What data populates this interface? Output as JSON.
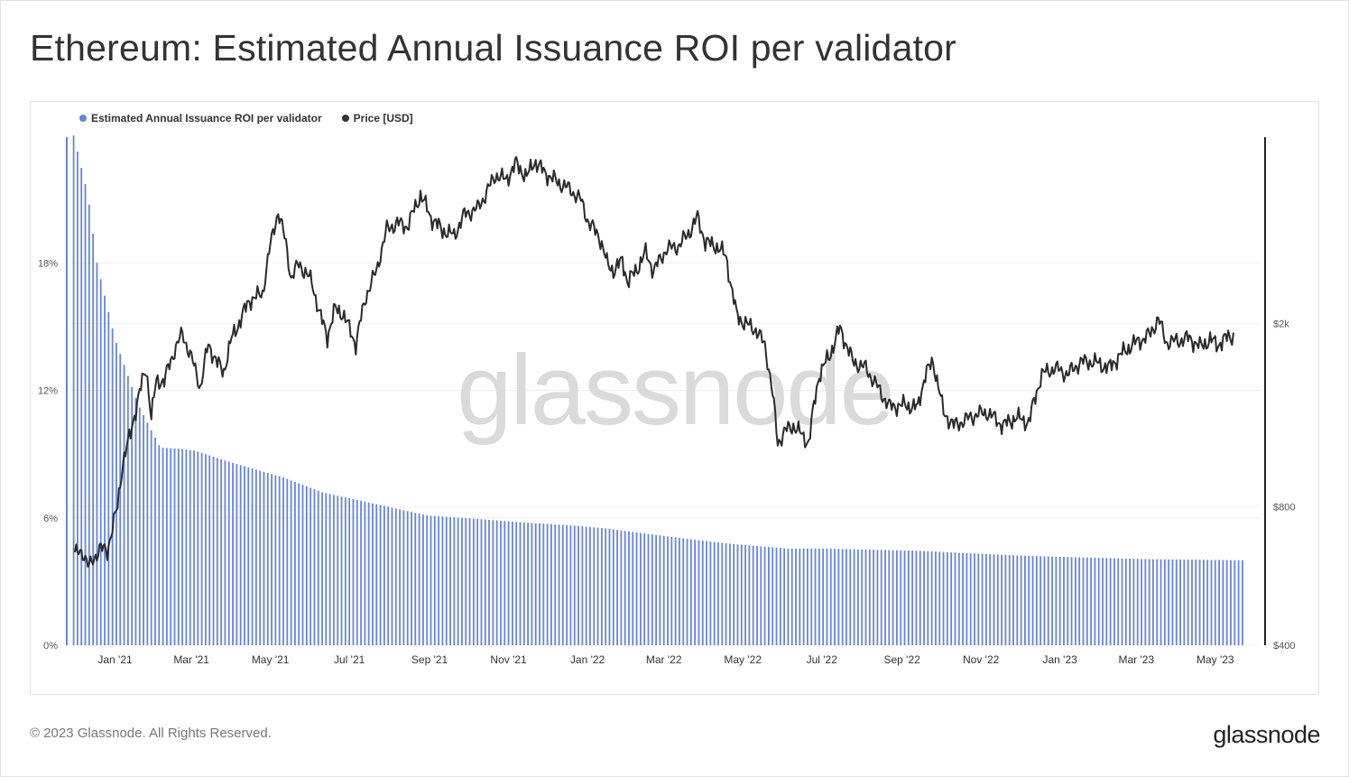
{
  "title": "Ethereum: Estimated Annual Issuance ROI per validator",
  "legend": [
    {
      "label": "Estimated Annual Issuance ROI per validator",
      "color": "#6784dd"
    },
    {
      "label": "Price [USD]",
      "color": "#333333"
    }
  ],
  "watermark": "glassnode",
  "footer": "© 2023 Glassnode. All Rights Reserved.",
  "brand": "glassnode",
  "chart_data": {
    "type": "bar+line",
    "title": "Ethereum: Estimated Annual Issuance ROI per validator",
    "x_tick_labels": [
      "Jan '21",
      "Mar '21",
      "May '21",
      "Jul '21",
      "Sep '21",
      "Nov '21",
      "Jan '22",
      "Mar '22",
      "May '22",
      "Jul '22",
      "Sep '22",
      "Nov '22",
      "Jan '23",
      "Mar '23",
      "May '23"
    ],
    "x_tick_days": [
      20,
      79,
      140,
      201,
      263,
      324,
      385,
      444,
      505,
      566,
      628,
      689,
      750,
      809,
      870
    ],
    "x_range_days": [
      -18,
      905
    ],
    "left_axis": {
      "label_ticks": [
        "0%",
        "6%",
        "12%",
        "18%"
      ],
      "values": [
        0,
        6,
        12,
        18
      ],
      "range": [
        0,
        24
      ]
    },
    "right_axis": {
      "scale": "log",
      "label_ticks": [
        "$400",
        "$800",
        "$2k"
      ],
      "values": [
        400,
        800,
        2000
      ],
      "range": [
        400,
        5120
      ]
    },
    "series": [
      {
        "name": "Estimated Annual Issuance ROI per validator",
        "type": "bar",
        "axis": "left",
        "color": "#6784dd",
        "points": [
          [
            -12,
            24
          ],
          [
            -1,
            21.2
          ],
          [
            6,
            18
          ],
          [
            20,
            14.4
          ],
          [
            38,
            11.3
          ],
          [
            55,
            9.3
          ],
          [
            70,
            9.25
          ],
          [
            82,
            9.15
          ],
          [
            110,
            8.6
          ],
          [
            150,
            7.9
          ],
          [
            180,
            7.2
          ],
          [
            225,
            6.6
          ],
          [
            262,
            6.1
          ],
          [
            300,
            5.95
          ],
          [
            330,
            5.8
          ],
          [
            370,
            5.65
          ],
          [
            400,
            5.5
          ],
          [
            430,
            5.25
          ],
          [
            470,
            4.95
          ],
          [
            500,
            4.75
          ],
          [
            540,
            4.55
          ],
          [
            570,
            4.55
          ],
          [
            600,
            4.5
          ],
          [
            640,
            4.45
          ],
          [
            680,
            4.33
          ],
          [
            720,
            4.22
          ],
          [
            740,
            4.18
          ],
          [
            790,
            4.1
          ],
          [
            820,
            4.05
          ],
          [
            893,
            4.0
          ]
        ]
      },
      {
        "name": "Price [USD]",
        "type": "line",
        "axis": "right",
        "color": "#2b2b2b",
        "points": [
          [
            -11,
            630
          ],
          [
            -5,
            640
          ],
          [
            0,
            590
          ],
          [
            8,
            650
          ],
          [
            14,
            640
          ],
          [
            18,
            720
          ],
          [
            22,
            800
          ],
          [
            26,
            1000
          ],
          [
            32,
            1150
          ],
          [
            38,
            1380
          ],
          [
            44,
            1600
          ],
          [
            48,
            1250
          ],
          [
            52,
            1500
          ],
          [
            58,
            1500
          ],
          [
            66,
            1750
          ],
          [
            72,
            1900
          ],
          [
            80,
            1650
          ],
          [
            86,
            1450
          ],
          [
            92,
            1800
          ],
          [
            99,
            1640
          ],
          [
            104,
            1570
          ],
          [
            110,
            1850
          ],
          [
            116,
            2010
          ],
          [
            124,
            2250
          ],
          [
            134,
            2320
          ],
          [
            140,
            2950
          ],
          [
            146,
            3500
          ],
          [
            152,
            2980
          ],
          [
            156,
            2500
          ],
          [
            162,
            2700
          ],
          [
            172,
            2460
          ],
          [
            178,
            2100
          ],
          [
            184,
            1870
          ],
          [
            190,
            2150
          ],
          [
            196,
            2100
          ],
          [
            206,
            1800
          ],
          [
            214,
            2300
          ],
          [
            222,
            2600
          ],
          [
            230,
            3200
          ],
          [
            238,
            3300
          ],
          [
            246,
            3250
          ],
          [
            256,
            3800
          ],
          [
            264,
            3400
          ],
          [
            272,
            3200
          ],
          [
            282,
            3100
          ],
          [
            290,
            3450
          ],
          [
            300,
            3550
          ],
          [
            306,
            3800
          ],
          [
            314,
            4200
          ],
          [
            322,
            4100
          ],
          [
            330,
            4450
          ],
          [
            338,
            4150
          ],
          [
            344,
            4500
          ],
          [
            352,
            4250
          ],
          [
            362,
            4050
          ],
          [
            372,
            3900
          ],
          [
            380,
            3700
          ],
          [
            386,
            3300
          ],
          [
            394,
            3100
          ],
          [
            400,
            2700
          ],
          [
            406,
            2600
          ],
          [
            412,
            2750
          ],
          [
            416,
            2450
          ],
          [
            424,
            2650
          ],
          [
            430,
            2850
          ],
          [
            436,
            2600
          ],
          [
            446,
            2900
          ],
          [
            456,
            2950
          ],
          [
            465,
            3200
          ],
          [
            470,
            3400
          ],
          [
            476,
            3000
          ],
          [
            484,
            2950
          ],
          [
            492,
            2800
          ],
          [
            496,
            2400
          ],
          [
            500,
            2100
          ],
          [
            506,
            2000
          ],
          [
            514,
            1950
          ],
          [
            522,
            1800
          ],
          [
            528,
            1400
          ],
          [
            532,
            1100
          ],
          [
            538,
            1170
          ],
          [
            544,
            1200
          ],
          [
            550,
            1150
          ],
          [
            556,
            1100
          ],
          [
            564,
            1550
          ],
          [
            572,
            1700
          ],
          [
            580,
            1950
          ],
          [
            590,
            1650
          ],
          [
            600,
            1600
          ],
          [
            606,
            1500
          ],
          [
            618,
            1320
          ],
          [
            630,
            1330
          ],
          [
            640,
            1310
          ],
          [
            646,
            1550
          ],
          [
            652,
            1650
          ],
          [
            660,
            1280
          ],
          [
            668,
            1200
          ],
          [
            676,
            1230
          ],
          [
            686,
            1270
          ],
          [
            694,
            1280
          ],
          [
            706,
            1200
          ],
          [
            716,
            1250
          ],
          [
            726,
            1220
          ],
          [
            736,
            1550
          ],
          [
            746,
            1600
          ],
          [
            756,
            1550
          ],
          [
            766,
            1650
          ],
          [
            776,
            1650
          ],
          [
            788,
            1600
          ],
          [
            796,
            1700
          ],
          [
            806,
            1800
          ],
          [
            814,
            1850
          ],
          [
            820,
            1900
          ],
          [
            826,
            2050
          ],
          [
            832,
            1820
          ],
          [
            840,
            1830
          ],
          [
            850,
            1860
          ],
          [
            858,
            1780
          ],
          [
            866,
            1840
          ],
          [
            872,
            1800
          ],
          [
            880,
            1870
          ],
          [
            884,
            1880
          ]
        ]
      }
    ]
  }
}
